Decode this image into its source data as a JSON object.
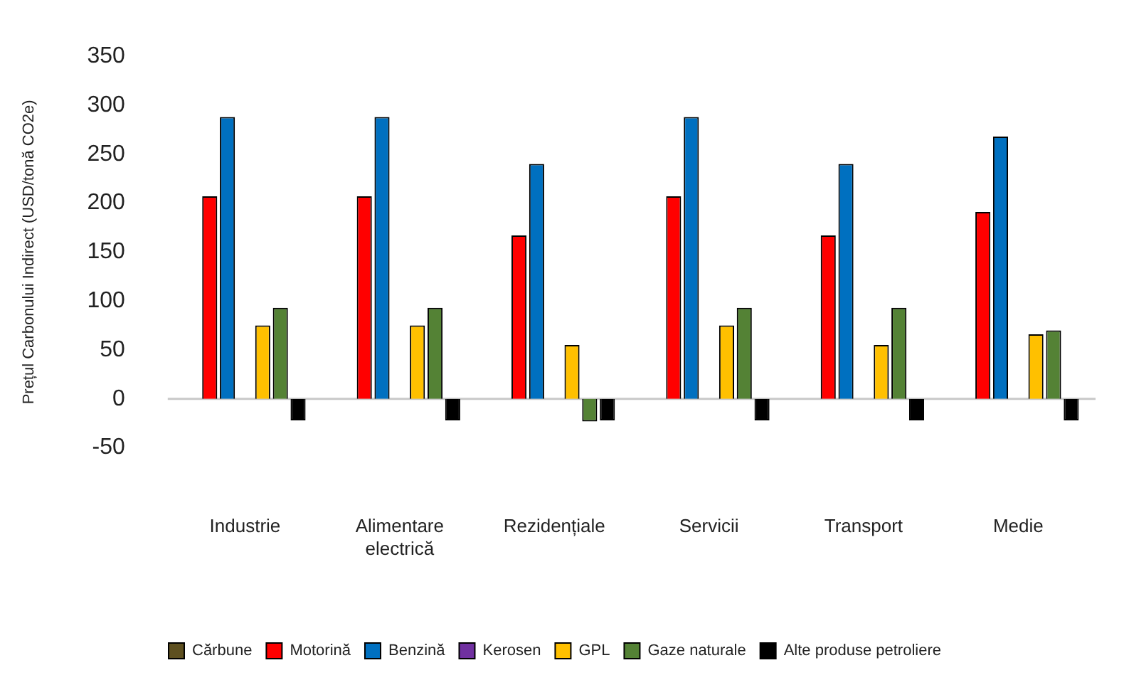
{
  "chart_data": {
    "type": "bar",
    "ylabel": "Prețul Carbonului Indirect (USD/tonă CO2e)",
    "categories": [
      "Industrie",
      "Alimentare electrică",
      "Rezidențiale",
      "Servicii",
      "Transport",
      "Medie"
    ],
    "ylim": [
      -50,
      350
    ],
    "yticks": [
      -50,
      0,
      50,
      100,
      150,
      200,
      250,
      300,
      350
    ],
    "grid": false,
    "ref_lines": [
      {
        "axis": "y",
        "value": 0,
        "color": "#c8c8c8"
      }
    ],
    "legend": "bottom",
    "series": [
      {
        "name": "Cărbune",
        "color": "#5e5020",
        "values": [
          0,
          0,
          0,
          0,
          0,
          0
        ]
      },
      {
        "name": "Motorină",
        "color": "#ff0000",
        "values": [
          207,
          207,
          167,
          207,
          167,
          191
        ]
      },
      {
        "name": "Benzină",
        "color": "#0070c0",
        "values": [
          288,
          288,
          240,
          288,
          240,
          268
        ]
      },
      {
        "name": "Kerosen",
        "color": "#7030a0",
        "values": [
          0,
          0,
          0,
          0,
          0,
          0
        ]
      },
      {
        "name": "GPL",
        "color": "#ffc000",
        "values": [
          75,
          75,
          55,
          75,
          55,
          66
        ]
      },
      {
        "name": "Gaze naturale",
        "color": "#548235",
        "values": [
          93,
          93,
          -23,
          93,
          93,
          70
        ]
      },
      {
        "name": "Alte produse petroliere",
        "color": "#000000",
        "values": [
          -22,
          -22,
          -22,
          -22,
          -22,
          -22
        ]
      }
    ]
  }
}
